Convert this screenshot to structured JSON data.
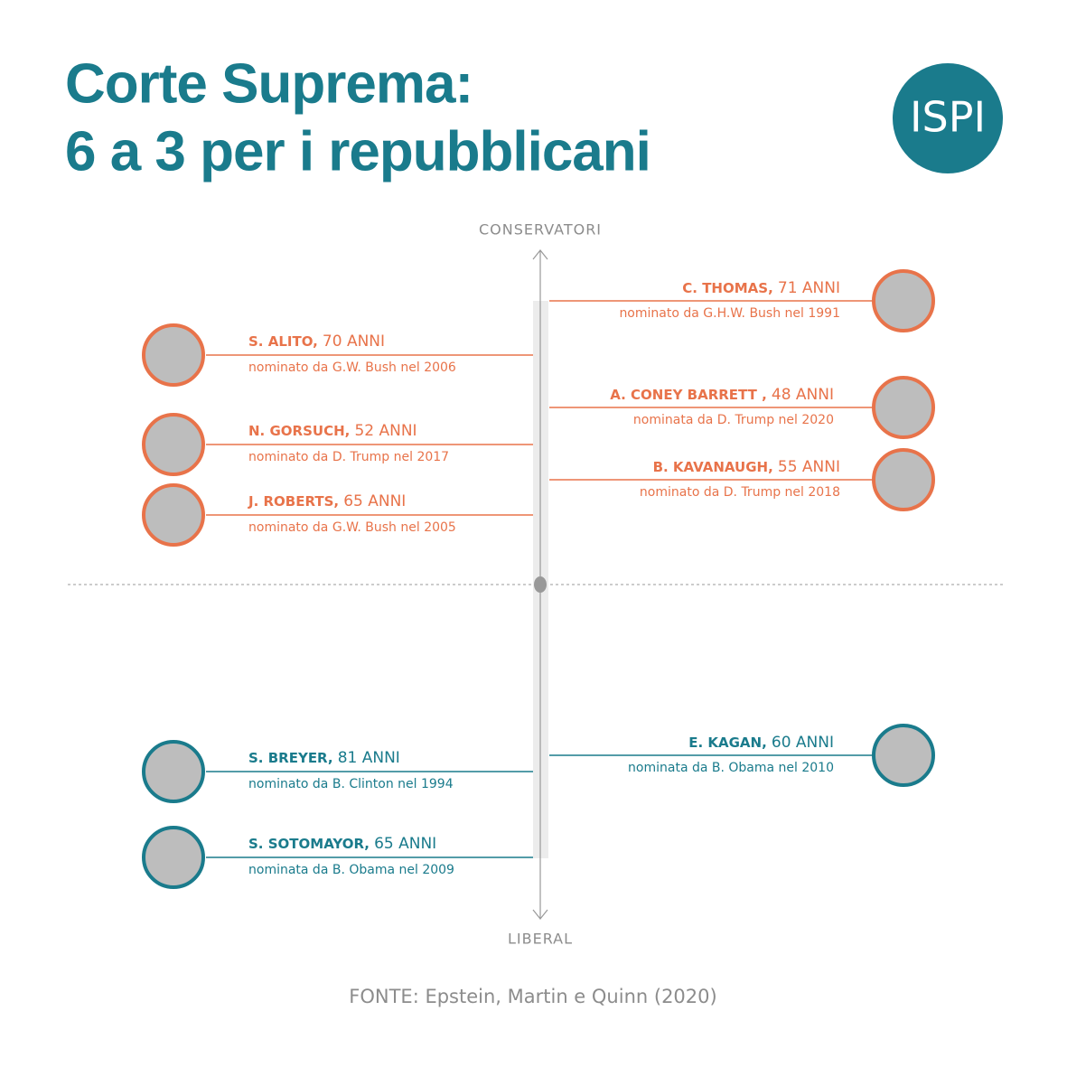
{
  "header": {
    "title": [
      "Corte Suprema:",
      "6 a 3 per i repubblicani"
    ],
    "logo": "ISPI"
  },
  "axis": {
    "top": "CONSERVATORI",
    "bottom": "LIBERAL"
  },
  "justices": [
    {
      "name": "C. THOMAS,",
      "age": "71 ANNI",
      "nomination": "nominato da G.H.W. Bush nel 1991",
      "color": "#e8734a"
    },
    {
      "name": "S. ALITO,",
      "age": "70 ANNI",
      "nomination": "nominato da G.W. Bush nel 2006",
      "color": "#e8734a"
    },
    {
      "name": "A. CONEY BARRETT ,",
      "age": "48 ANNI",
      "nomination": "nominata da D. Trump nel 2020",
      "color": "#e8734a"
    },
    {
      "name": "N. GORSUCH,",
      "age": "52 ANNI",
      "nomination": "nominato da D. Trump nel 2017",
      "color": "#e8734a"
    },
    {
      "name": "B. KAVANAUGH,",
      "age": "55 ANNI",
      "nomination": "nominato da D. Trump nel 2018",
      "color": "#e8734a"
    },
    {
      "name": "J. ROBERTS,",
      "age": "65 ANNI",
      "nomination": "nominato da G.W. Bush nel 2005",
      "color": "#e8734a"
    },
    {
      "name": "E. KAGAN,",
      "age": "60 ANNI",
      "nomination": "nominata da B. Obama nel 2010",
      "color": "#1a7b8c"
    },
    {
      "name": "S. BREYER,",
      "age": "81 ANNI",
      "nomination": "nominato da B. Clinton nel 1994",
      "color": "#1a7b8c"
    },
    {
      "name": "S. SOTOMAYOR,",
      "age": "65 ANNI",
      "nomination": "nominata da B. Obama nel 2009",
      "color": "#1a7b8c"
    }
  ],
  "source": "FONTE: Epstein, Martin e Quinn (2020)"
}
